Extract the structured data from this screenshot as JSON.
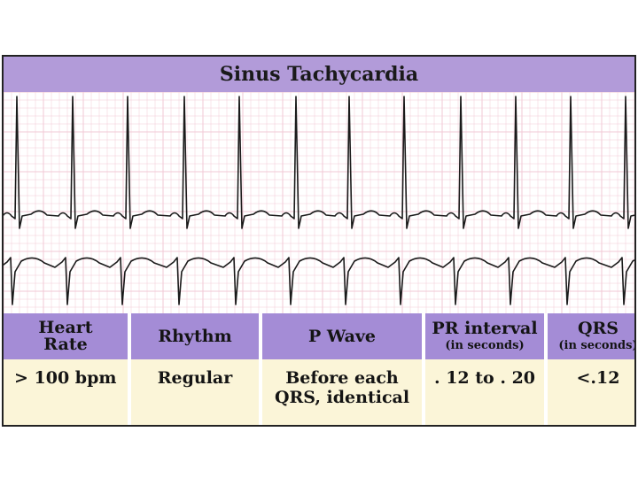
{
  "title": "Sinus Tachycardia",
  "ecg": {
    "beats_lead_1": [
      15,
      78,
      140,
      204,
      266,
      330,
      390,
      452,
      516,
      578,
      640,
      702
    ],
    "beats_lead_2": [
      10,
      72,
      134,
      198,
      262,
      324,
      386,
      448,
      510,
      572,
      636,
      700
    ]
  },
  "colors": {
    "header_bg": "#a48cd6",
    "cell_bg": "#fbf5d8",
    "grid": "#f2c9d6",
    "trace": "#1a1a1a"
  },
  "table": {
    "headers": [
      {
        "main": "Heart\nRate",
        "sub": ""
      },
      {
        "main": "Rhythm",
        "sub": ""
      },
      {
        "main": "P Wave",
        "sub": ""
      },
      {
        "main": "PR interval",
        "sub": "(in seconds)"
      },
      {
        "main": "QRS",
        "sub": "(in seconds)"
      }
    ],
    "values": [
      "> 100 bpm",
      "Regular",
      "Before each\nQRS, identical",
      ". 12 to . 20",
      "<.12"
    ]
  }
}
